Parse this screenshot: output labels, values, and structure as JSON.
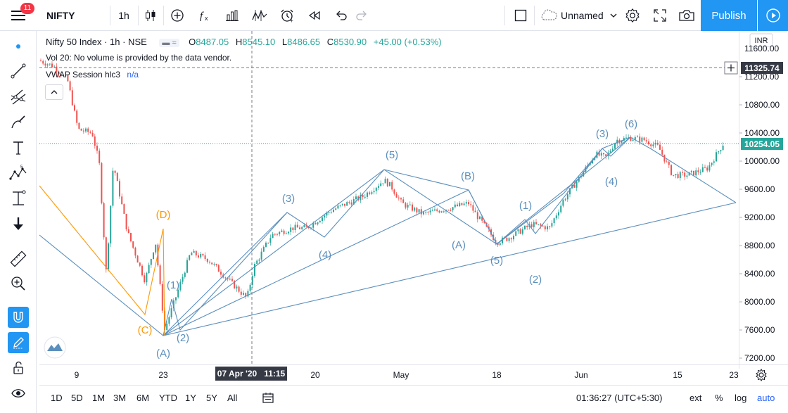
{
  "topbar": {
    "notification_count": "11",
    "symbol": "NIFTY",
    "interval": "1h",
    "layout_name": "Unnamed",
    "publish_label": "Publish",
    "icons": [
      "menu-icon",
      "candles-icon",
      "add-compare-icon",
      "indicators-icon",
      "templates-icon",
      "alert-icon",
      "replay-icon",
      "undo-icon",
      "redo-icon",
      "square-icon",
      "cloud-icon",
      "settings-icon",
      "fullscreen-icon",
      "camera-icon",
      "play-icon"
    ]
  },
  "legend": {
    "title": "Nifty 50 Index · 1h · NSE",
    "o_label": "O",
    "o_value": "8487.05",
    "h_label": "H",
    "h_value": "8545.10",
    "l_label": "L",
    "l_value": "8486.65",
    "c_label": "C",
    "c_value": "8530.90",
    "change": "+45.00 (+0.53%)",
    "vol_text": "Vol 20: No volume is provided by the data vendor.",
    "vwap_label": "VWAP Session hlc3",
    "vwap_value": "n/a"
  },
  "price_axis": {
    "currency": "INR",
    "labels": [
      "11600.00",
      "11200.00",
      "10800.00",
      "10400.00",
      "10000.00",
      "9600.00",
      "9200.00",
      "8800.00",
      "8400.00",
      "8000.00",
      "7600.00",
      "7200.00"
    ],
    "crosshair_price": "11325.74",
    "last_price": "10254.05"
  },
  "time_axis": {
    "labels": [
      "9",
      "23",
      "20",
      "May",
      "18",
      "Jun",
      "15",
      "23"
    ],
    "crosshair_time": "07 Apr '20   11:15"
  },
  "wave_labels": {
    "orange": [
      "(D)",
      "(C)"
    ],
    "blue": [
      "(1)",
      "(2)",
      "(A)",
      "(3)",
      "(4)",
      "(5)",
      "(B)",
      "(A)",
      "(1)",
      "(2)",
      "(5)",
      "(3)",
      "(4)",
      "(6)"
    ]
  },
  "bottombar": {
    "ranges": [
      "1D",
      "5D",
      "1M",
      "3M",
      "6M",
      "YTD",
      "1Y",
      "5Y",
      "All"
    ],
    "clock": "01:36:27 (UTC+5:30)",
    "ext_label": "ext",
    "pct_label": "%",
    "log_label": "log",
    "auto_label": "auto"
  },
  "colors": {
    "up": "#26a69a",
    "down": "#ef5350",
    "wave_blue": "#5b8fbd",
    "wave_orange": "#ff9800",
    "accent": "#2196f3"
  }
}
